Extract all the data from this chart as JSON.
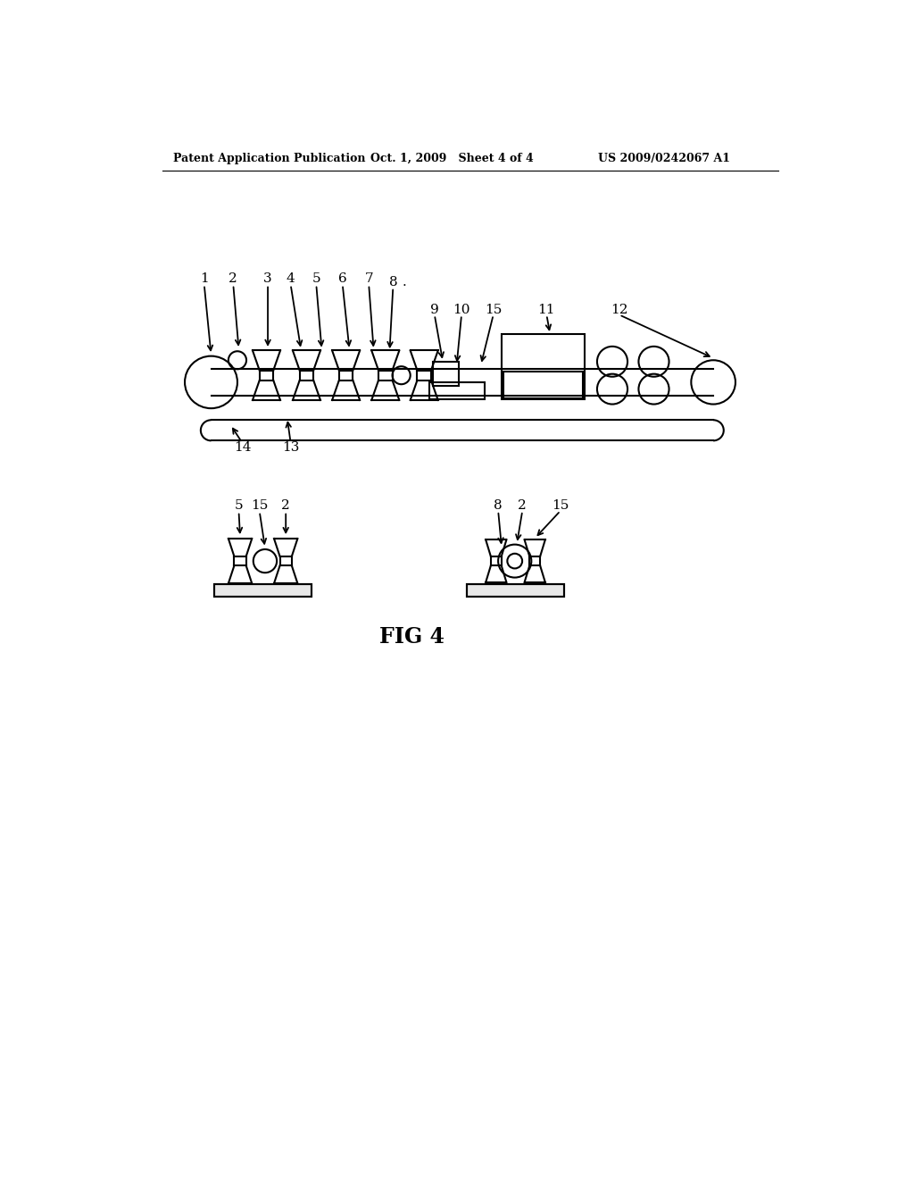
{
  "bg_color": "#ffffff",
  "header_left": "Patent Application Publication",
  "header_mid": "Oct. 1, 2009   Sheet 4 of 4",
  "header_right": "US 2009/0242067 A1",
  "fig_label": "FIG 4",
  "line_color": "#000000",
  "line_width": 1.5,
  "arrow_color": "#000000"
}
